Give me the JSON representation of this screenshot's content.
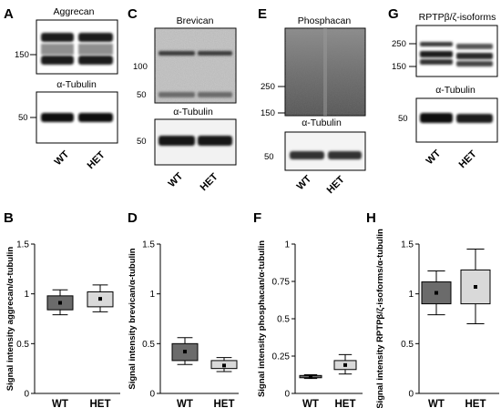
{
  "panels": {
    "A": {
      "letter": "A",
      "blots": [
        {
          "title": "Aggrecan",
          "markers": [
            "150"
          ]
        },
        {
          "title": "α-Tubulin",
          "markers": [
            "50"
          ]
        }
      ],
      "lanes": [
        "WT",
        "HET"
      ]
    },
    "C": {
      "letter": "C",
      "blots": [
        {
          "title": "Brevican",
          "markers": [
            "100",
            "50"
          ]
        },
        {
          "title": "α-Tubulin",
          "markers": [
            "50"
          ]
        }
      ],
      "lanes": [
        "WT",
        "HET"
      ]
    },
    "E": {
      "letter": "E",
      "blots": [
        {
          "title": "Phosphacan",
          "markers": [
            "250",
            "150"
          ]
        },
        {
          "title": "α-Tubulin",
          "markers": [
            "50"
          ]
        }
      ],
      "lanes": [
        "WT",
        "HET"
      ]
    },
    "G": {
      "letter": "G",
      "blots": [
        {
          "title": "RPTPβ/ζ-isoforms",
          "markers": [
            "250",
            "150"
          ]
        },
        {
          "title": "α-Tubulin",
          "markers": [
            "50"
          ]
        }
      ],
      "lanes": [
        "WT",
        "HET"
      ]
    }
  },
  "chart_data": [
    {
      "panel": "B",
      "type": "box",
      "categories": [
        "WT",
        "HET"
      ],
      "ylabel": "Signal intensity aggrecan/α-tubulin",
      "yticks": [
        "0",
        "0.5",
        "1",
        "1.5"
      ],
      "ylim": [
        0,
        1.5
      ],
      "series": [
        {
          "whisker_low": 0.79,
          "q1": 0.84,
          "mean": 0.91,
          "q3": 0.98,
          "whisker_high": 1.04,
          "fill": "#6b6b6b"
        },
        {
          "whisker_low": 0.82,
          "q1": 0.87,
          "mean": 0.95,
          "q3": 1.02,
          "whisker_high": 1.09,
          "fill": "#d9d9d9"
        }
      ]
    },
    {
      "panel": "D",
      "type": "box",
      "categories": [
        "WT",
        "HET"
      ],
      "ylabel": "Signal intensity brevican/α-tubulin",
      "yticks": [
        "0",
        "0.5",
        "1",
        "1.5"
      ],
      "ylim": [
        0,
        1.5
      ],
      "series": [
        {
          "whisker_low": 0.29,
          "q1": 0.33,
          "mean": 0.42,
          "q3": 0.5,
          "whisker_high": 0.56,
          "fill": "#6b6b6b"
        },
        {
          "whisker_low": 0.22,
          "q1": 0.25,
          "mean": 0.28,
          "q3": 0.33,
          "whisker_high": 0.36,
          "fill": "#d9d9d9"
        }
      ]
    },
    {
      "panel": "F",
      "type": "box",
      "categories": [
        "WT",
        "HET"
      ],
      "ylabel": "Signal intensity phosphacan/α-tubulin",
      "yticks": [
        "0",
        "0.25",
        "0.5",
        "0.75",
        "1"
      ],
      "ylim": [
        0,
        1
      ],
      "series": [
        {
          "whisker_low": 0.1,
          "q1": 0.105,
          "mean": 0.11,
          "q3": 0.12,
          "whisker_high": 0.125,
          "fill": "#6b6b6b"
        },
        {
          "whisker_low": 0.13,
          "q1": 0.16,
          "mean": 0.19,
          "q3": 0.22,
          "whisker_high": 0.26,
          "fill": "#d9d9d9"
        }
      ]
    },
    {
      "panel": "H",
      "type": "box",
      "categories": [
        "WT",
        "HET"
      ],
      "ylabel": "Signal intensity RPTPβ/ζ-isoforms/α-tubulin",
      "yticks": [
        "0",
        "0.5",
        "1",
        "1.5"
      ],
      "ylim": [
        0,
        1.5
      ],
      "series": [
        {
          "whisker_low": 0.79,
          "q1": 0.9,
          "mean": 1.01,
          "q3": 1.12,
          "whisker_high": 1.23,
          "fill": "#6b6b6b"
        },
        {
          "whisker_low": 0.7,
          "q1": 0.9,
          "mean": 1.07,
          "q3": 1.24,
          "whisker_high": 1.45,
          "fill": "#d9d9d9"
        }
      ]
    }
  ]
}
